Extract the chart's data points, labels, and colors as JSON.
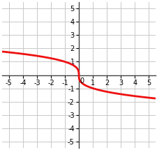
{
  "xlim": [
    -5.5,
    5.5
  ],
  "ylim": [
    -5.5,
    5.5
  ],
  "xticks": [
    -5,
    -4,
    -3,
    -2,
    -1,
    1,
    2,
    3,
    4,
    5
  ],
  "yticks": [
    -5,
    -4,
    -3,
    -2,
    -1,
    1,
    2,
    3,
    4,
    5
  ],
  "x0_label": "0",
  "curve_color": "#ee1111",
  "curve_linewidth": 2.0,
  "background_color": "#ffffff",
  "grid_color": "#c8c8c8",
  "axis_color": "#444444",
  "tick_fontsize": 7.0,
  "grid_linewidth": 0.7
}
